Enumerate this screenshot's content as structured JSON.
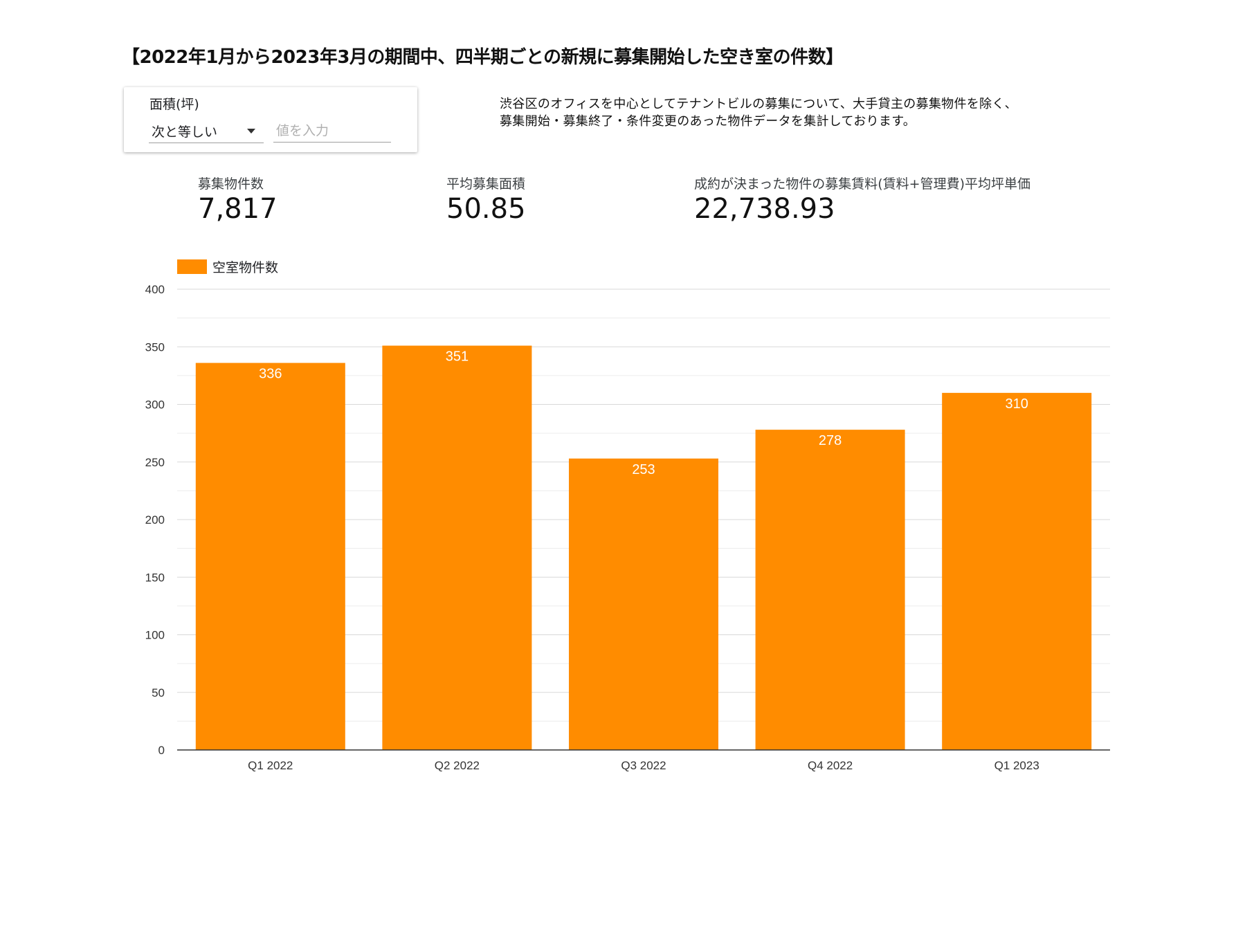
{
  "title": "【2022年1月から2023年3月の期間中、四半期ごとの新規に募集開始した空き室の件数】",
  "filter": {
    "label": "面積(坪)",
    "operator": "次と等しい",
    "value_placeholder": "値を入力"
  },
  "description": {
    "line1": "渋谷区のオフィスを中心としてテナントビルの募集について、大手貸主の募集物件を除く、",
    "line2": "募集開始・募集終了・条件変更のあった物件データを集計しております。"
  },
  "kpis": [
    {
      "label": "募集物件数",
      "value": "7,817"
    },
    {
      "label": "平均募集面積",
      "value": "50.85"
    },
    {
      "label": "成約が決まった物件の募集賃料(賃料+管理費)平均坪単価",
      "value": "22,738.93"
    }
  ],
  "chart_data": {
    "type": "bar",
    "categories": [
      "Q1 2022",
      "Q2 2022",
      "Q3 2022",
      "Q4 2022",
      "Q1 2023"
    ],
    "series": [
      {
        "name": "空室物件数",
        "values": [
          336,
          351,
          253,
          278,
          310
        ],
        "color": "#ff8c00"
      }
    ],
    "ylim": [
      0,
      400
    ],
    "yticks": [
      0,
      50,
      100,
      150,
      200,
      250,
      300,
      350,
      400
    ],
    "grid": true,
    "legend": "top-left",
    "data_labels": true
  }
}
